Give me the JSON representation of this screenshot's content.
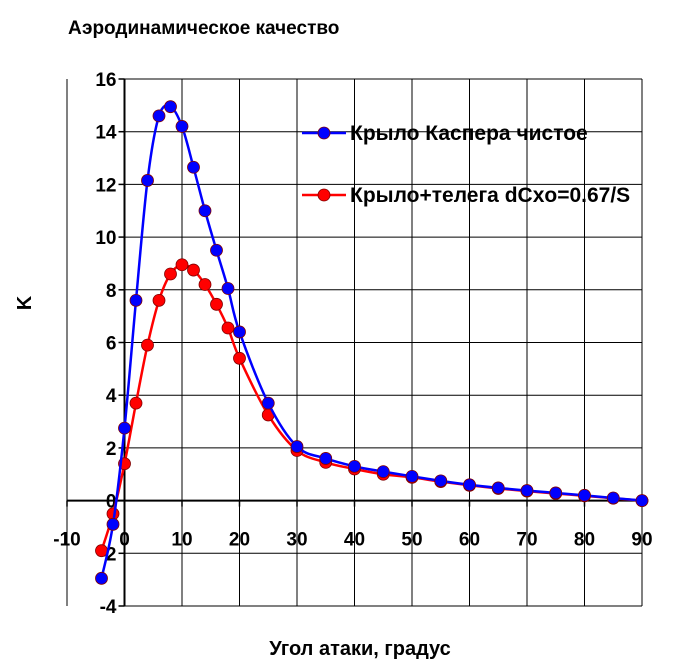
{
  "chart_data": {
    "type": "line",
    "title": "Аэродинамическое качество",
    "xlabel": "Угол атаки, градус",
    "ylabel": "K",
    "xlim": [
      -10,
      90
    ],
    "ylim": [
      -4,
      16
    ],
    "x_ticks": [
      "-10",
      "0",
      "10",
      "20",
      "30",
      "40",
      "50",
      "60",
      "70",
      "80",
      "90"
    ],
    "y_ticks": [
      "-4",
      "-2",
      "0",
      "2",
      "4",
      "6",
      "8",
      "10",
      "12",
      "14",
      "16"
    ],
    "grid": true,
    "legend_position": "top-right",
    "series": [
      {
        "name": "Крыло Каспера чистое",
        "color": "#0000ff",
        "x": [
          -4,
          -2,
          0,
          2,
          4,
          6,
          8,
          10,
          12,
          14,
          16,
          18,
          20,
          25,
          30,
          35,
          40,
          45,
          50,
          55,
          60,
          65,
          70,
          75,
          80,
          85,
          90
        ],
        "y": [
          -2.95,
          -0.9,
          2.75,
          7.6,
          12.15,
          14.6,
          14.95,
          14.2,
          12.65,
          11.0,
          9.5,
          8.05,
          6.4,
          3.7,
          2.05,
          1.6,
          1.3,
          1.1,
          0.92,
          0.75,
          0.6,
          0.48,
          0.38,
          0.29,
          0.2,
          0.1,
          0.0
        ]
      },
      {
        "name": "Крыло+телега dCxo=0.67/S",
        "color": "#ff0000",
        "x": [
          -4,
          -2,
          0,
          2,
          4,
          6,
          8,
          10,
          12,
          14,
          16,
          18,
          20,
          25,
          30,
          35,
          40,
          45,
          50,
          55,
          60,
          65,
          70,
          75,
          80,
          85,
          90
        ],
        "y": [
          -1.9,
          -0.5,
          1.4,
          3.7,
          5.9,
          7.6,
          8.6,
          8.95,
          8.75,
          8.2,
          7.45,
          6.55,
          5.4,
          3.25,
          1.9,
          1.45,
          1.2,
          1.0,
          0.88,
          0.72,
          0.58,
          0.46,
          0.36,
          0.27,
          0.18,
          0.09,
          0.0
        ]
      }
    ]
  }
}
